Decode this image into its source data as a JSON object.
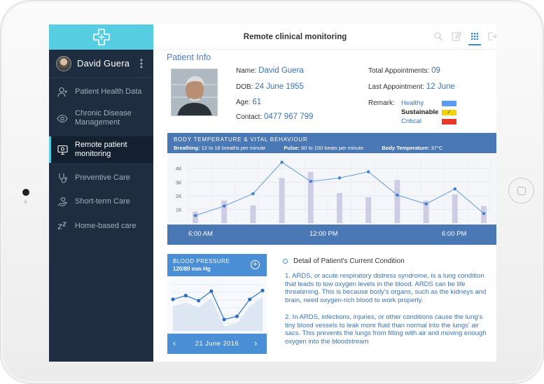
{
  "app": {
    "title": "Remote clinical monitoring",
    "accent": "#56cde0",
    "sidebar_bg": "#1e2d40",
    "primary_blue": "#4a78b4"
  },
  "user": {
    "name": "David Guera"
  },
  "sidebar": {
    "items": [
      {
        "label": "Patient Health Data",
        "icon": "add-user-icon",
        "active": false
      },
      {
        "label": "Chronic Disease Management",
        "icon": "eye-icon",
        "active": false
      },
      {
        "label": "Remote patient monitoring",
        "icon": "monitor-icon",
        "active": true
      },
      {
        "label": "Preventive Care",
        "icon": "stethoscope-icon",
        "active": false
      },
      {
        "label": "Short-term Care",
        "icon": "hand-care-icon",
        "active": false
      },
      {
        "label": "Home-based care",
        "icon": "sleep-zz-icon",
        "active": false
      }
    ]
  },
  "toolbar": {
    "icons": [
      "search-icon",
      "edit-icon",
      "grid-icon",
      "logout-icon"
    ]
  },
  "patient": {
    "heading": "Patient Info",
    "name_label": "Name:",
    "name": "David Guera",
    "dob_label": "DOB:",
    "dob": "24 June 1955",
    "age_label": "Age:",
    "age": "61",
    "contact_label": "Contact:",
    "contact": "0477 967 799",
    "total_label": "Total Appointments:",
    "total": "09",
    "last_label": "Last Appointment:",
    "last": "12 June",
    "remark_label": "Remark:",
    "remarks": [
      {
        "label": "Healthy",
        "color": "#5b9bf0",
        "selected": false
      },
      {
        "label": "Sustainable",
        "color": "#f2d500",
        "selected": true
      },
      {
        "label": "Critical",
        "color": "#e8382a",
        "selected": false
      }
    ],
    "check_mark": "✓"
  },
  "vitals": {
    "title": "BODY TEMPERATURE & VITAL BEHAVIOUR",
    "breathing_label": "Breathing:",
    "breathing": "12 to 18 breaths per minute",
    "pulse_label": "Pulse:",
    "pulse": "60 to 100 beats per minute",
    "temp_label": "Body Temperature:",
    "temp": "37°C"
  },
  "chart_data": [
    {
      "type": "bar",
      "title": "BODY TEMPERATURE & VITAL BEHAVIOUR",
      "y_ticks": [
        "1K",
        "2K",
        "3K",
        "4K"
      ],
      "x_ticks": [
        "6:00 AM",
        "12:00 PM",
        "6:00 PM"
      ],
      "ylim": [
        0,
        4600
      ],
      "bars": [
        850,
        1650,
        1300,
        3300,
        3750,
        2200,
        1900,
        3150,
        1650,
        2100,
        1250
      ],
      "line": [
        550,
        1250,
        2150,
        4450,
        3050,
        3300,
        3750,
        2050,
        1400,
        2500,
        700
      ],
      "grid": true
    },
    {
      "type": "line",
      "title": "BLOOD PRESSURE",
      "value_label": "120/80 mm Hg",
      "values": [
        120,
        126,
        118,
        133,
        88,
        93,
        120,
        134
      ],
      "ylim": [
        70,
        150
      ]
    }
  ],
  "blood_pressure": {
    "title": "BLOOD PRESSURE",
    "value": "120/80 mm Hg",
    "date": "21 June 2016",
    "prev": "‹",
    "next": "›"
  },
  "detail": {
    "heading": "Detail of Patient's Current Condition",
    "p1": "1. ARDS, or acute respiratory distress syndrome, is a lung condition that leads to low oxygen levels in the blood. ARDS can be life threatening. This is because body's organs, such as the kidneys and brain, need oxygen-rich blood to work properly.",
    "p2": "2. In ARDS, infections, injuries, or other conditions cause the lung's tiny blood vessels to leak more fluid than normal into the lungs' air sacs. This prevents the lungs from filling with air and moving enough oxygen into the bloodstream"
  }
}
